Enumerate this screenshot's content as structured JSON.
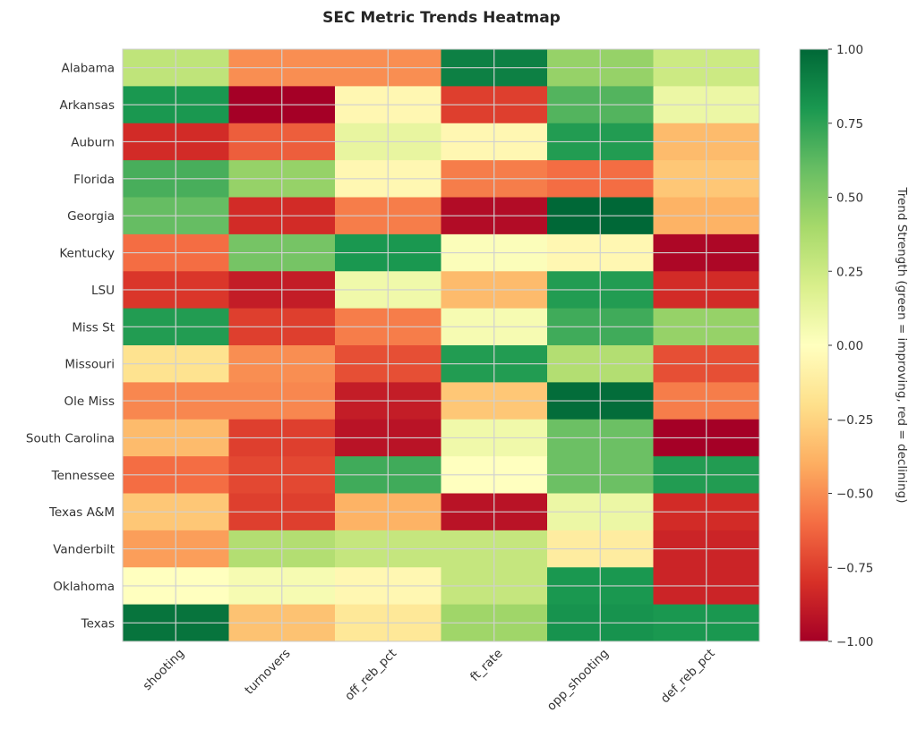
{
  "chart_data": {
    "type": "heatmap",
    "title": "SEC Metric Trends Heatmap",
    "xlabel": "",
    "ylabel": "",
    "colormap": "RdYlGn",
    "vmin": -1.0,
    "vmax": 1.0,
    "grid": true,
    "columns": [
      "shooting",
      "turnovers",
      "off_reb_pct",
      "ft_rate",
      "opp_shooting",
      "def_reb_pct"
    ],
    "rows": [
      "Alabama",
      "Arkansas",
      "Auburn",
      "Florida",
      "Georgia",
      "Kentucky",
      "LSU",
      "Miss St",
      "Missouri",
      "Ole Miss",
      "South Carolina",
      "Tennessee",
      "Texas A&M",
      "Vanderbilt",
      "Oklahoma",
      "Texas"
    ],
    "values": [
      [
        0.3,
        -0.5,
        -0.5,
        0.9,
        0.45,
        0.25
      ],
      [
        0.8,
        -1.0,
        -0.05,
        -0.75,
        0.65,
        0.1
      ],
      [
        -0.82,
        -0.65,
        0.12,
        -0.05,
        0.78,
        -0.35
      ],
      [
        0.68,
        0.45,
        -0.05,
        -0.55,
        -0.6,
        -0.3
      ],
      [
        0.6,
        -0.82,
        -0.55,
        -0.95,
        1.0,
        -0.38
      ],
      [
        -0.6,
        0.55,
        0.8,
        0.02,
        -0.05,
        -0.97
      ],
      [
        -0.78,
        -0.88,
        0.08,
        -0.35,
        0.78,
        -0.82
      ],
      [
        0.78,
        -0.75,
        -0.55,
        0.05,
        0.7,
        0.45
      ],
      [
        -0.18,
        -0.5,
        -0.7,
        0.78,
        0.35,
        -0.7
      ],
      [
        -0.52,
        -0.52,
        -0.88,
        -0.3,
        0.98,
        -0.55
      ],
      [
        -0.35,
        -0.75,
        -0.92,
        0.08,
        0.58,
        -1.0
      ],
      [
        -0.6,
        -0.72,
        0.7,
        0.0,
        0.58,
        0.78
      ],
      [
        -0.3,
        -0.75,
        -0.38,
        -0.92,
        0.1,
        -0.82
      ],
      [
        -0.45,
        0.35,
        0.28,
        0.28,
        -0.12,
        -0.85
      ],
      [
        0.0,
        0.05,
        -0.05,
        0.28,
        0.8,
        -0.85
      ],
      [
        0.95,
        -0.32,
        -0.15,
        0.42,
        0.82,
        0.8
      ]
    ],
    "colorbar": {
      "label": "Trend Strength (green = improving, red = declining)",
      "ticks": [
        1.0,
        0.75,
        0.5,
        0.25,
        0.0,
        -0.25,
        -0.5,
        -0.75,
        -1.0
      ],
      "tick_labels": [
        "1.00",
        "0.75",
        "0.50",
        "0.25",
        "0.00",
        "−0.25",
        "−0.50",
        "−0.75",
        "−1.00"
      ]
    }
  }
}
